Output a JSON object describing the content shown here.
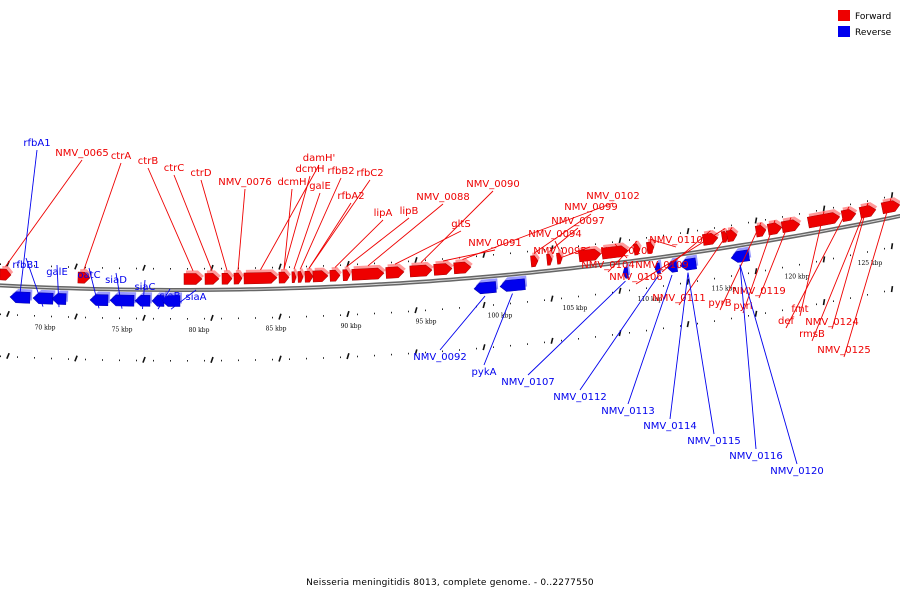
{
  "caption": "Neisseria meningitidis 8013, complete genome. - 0..2277550",
  "legend": [
    {
      "label": "Forward",
      "color": "#ee0000"
    },
    {
      "label": "Reverse",
      "color": "#0000ee"
    }
  ],
  "colors": {
    "forward": "#ee0000",
    "reverse": "#0000ee",
    "backbone": "#666666"
  },
  "kbp_unit": "kbp",
  "ticks": [
    70,
    75,
    80,
    85,
    90,
    95,
    100,
    105,
    110,
    115,
    120,
    125
  ],
  "forward_labels": [
    "NMV_0065",
    "ctrA",
    "ctrB",
    "ctrC",
    "ctrD",
    "NMV_0076",
    "damH'",
    "dcmH",
    "dcmH",
    "galE",
    "rfbB2",
    "rfbC2",
    "rfbA2",
    "lipA",
    "lipB",
    "NMV_0088",
    "gltS",
    "NMV_0090",
    "NMV_0091",
    "NMV_0102",
    "NMV_0099",
    "NMV_0097",
    "NMV_0094",
    "NMV_0095",
    "NMV_0105",
    "NMV_0104",
    "NMV_0110",
    "NMV_0109",
    "NMV_0106",
    "NMV_0111",
    "pyrB",
    "pyrI",
    "NMV_0119",
    "fmt",
    "def",
    "NMV_0124",
    "rmsB",
    "NMV_0125"
  ],
  "reverse_labels": [
    "rfbA1",
    "rfbB1",
    "galE",
    "oatC",
    "siaD",
    "siaC",
    "siaB",
    "siaA",
    "NMV_0092",
    "pykA",
    "NMV_0107",
    "NMV_0112",
    "NMV_0113",
    "NMV_0114",
    "NMV_0115",
    "NMV_0116",
    "NMV_0120"
  ]
}
